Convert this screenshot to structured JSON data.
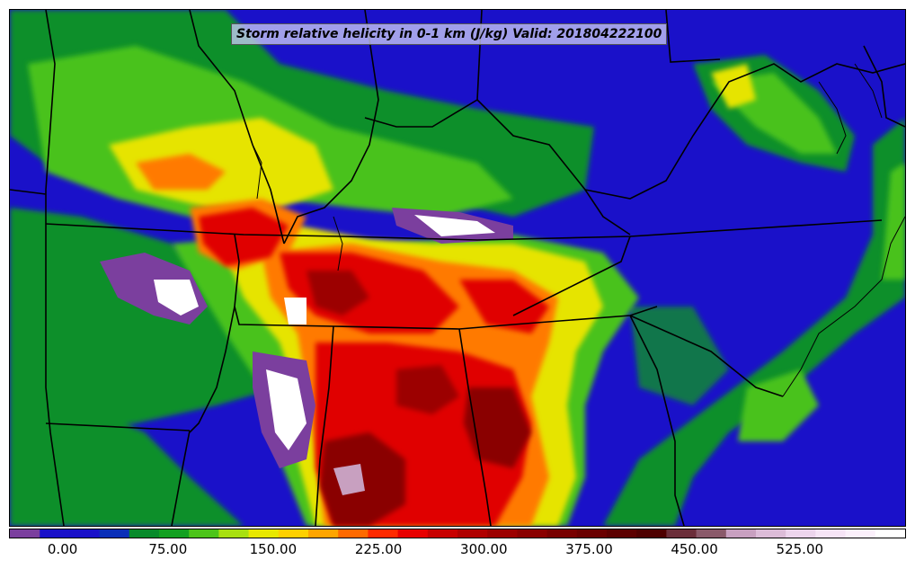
{
  "map": {
    "title": "Storm relative helicity in 0-1 km (J/kg) Valid: 201804222100"
  },
  "colorbar": {
    "vmin": -37.5,
    "vmax": 600,
    "step": 25,
    "colors": [
      "#7b3f9e",
      "#1a11c9",
      "#1a11c9",
      "#0a2fb8",
      "#078a2a",
      "#12a020",
      "#4cc41a",
      "#a8e010",
      "#e8e800",
      "#ffd000",
      "#ffa500",
      "#ff6a00",
      "#ff2a00",
      "#e80000",
      "#c80000",
      "#b00000",
      "#9c0000",
      "#8a0000",
      "#780000",
      "#6a0000",
      "#5c0000",
      "#4e0000",
      "#6b2e3a",
      "#8a5a6a",
      "#c8a0c0",
      "#dcbcd8",
      "#ecd4ec",
      "#f6e4f6",
      "#fbf0fb",
      "#ffffff"
    ],
    "tick_labels": [
      "0.00",
      "75.00",
      "150.00",
      "225.00",
      "300.00",
      "375.00",
      "450.00",
      "525.00"
    ],
    "tick_values": [
      0,
      75,
      150,
      225,
      300,
      375,
      450,
      525
    ]
  }
}
